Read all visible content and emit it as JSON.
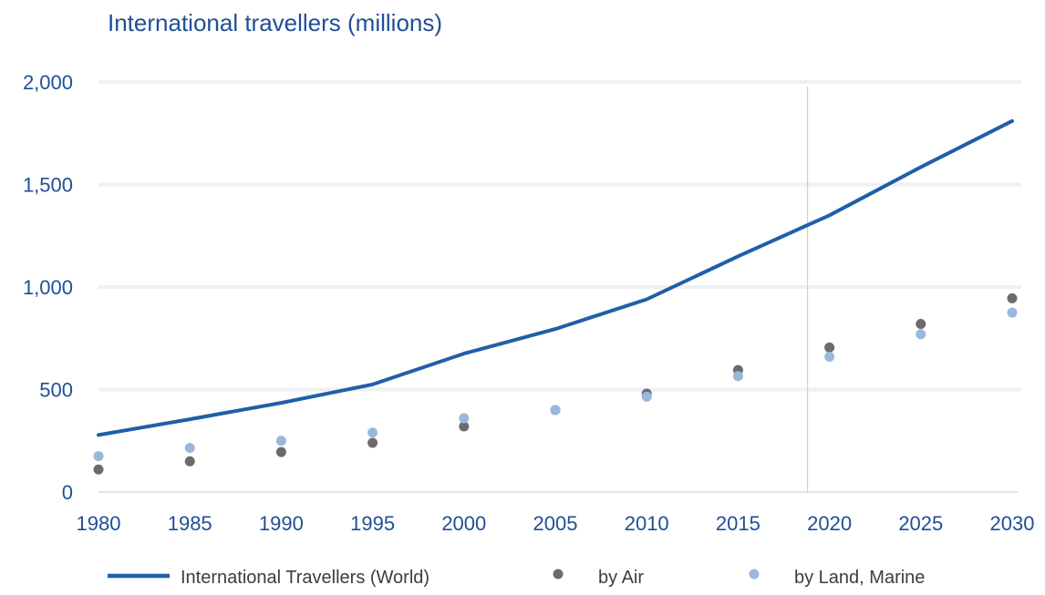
{
  "chart_data": {
    "type": "line",
    "title": "International travellers (millions)",
    "xlabel": "",
    "ylabel": "",
    "x": [
      1980,
      1985,
      1990,
      1995,
      2000,
      2005,
      2010,
      2015,
      2020,
      2025,
      2030
    ],
    "xlim": [
      1980,
      2030
    ],
    "ylim": [
      0,
      2000
    ],
    "yticks": [
      0,
      500,
      1000,
      1500,
      2000
    ],
    "ytick_labels": [
      "0",
      "500",
      "1,000",
      "1,500",
      "2,000"
    ],
    "xtick_labels": [
      "1980",
      "1985",
      "1990",
      "1995",
      "2000",
      "2005",
      "2010",
      "2015",
      "2020",
      "2025",
      "2030"
    ],
    "grid": true,
    "legend_position": "bottom",
    "marker_line_x": 2018.8,
    "series": [
      {
        "name": "International Travellers (World)",
        "style": "line",
        "color": "#1f5fa8",
        "x": [
          1980,
          1985,
          1990,
          1995,
          2000,
          2005,
          2010,
          2015,
          2020,
          2025,
          2030
        ],
        "values": [
          278,
          355,
          435,
          525,
          675,
          795,
          940,
          1150,
          1350,
          1585,
          1810
        ]
      },
      {
        "name": "by Air",
        "style": "scatter",
        "color": "#6b6b6b",
        "x": [
          1980,
          1985,
          1990,
          1995,
          2000,
          2005,
          2010,
          2015,
          2020,
          2025,
          2030
        ],
        "values": [
          110,
          150,
          195,
          240,
          320,
          400,
          480,
          595,
          705,
          820,
          945
        ]
      },
      {
        "name": "by Land, Marine",
        "style": "scatter",
        "color": "#9ab8de",
        "x": [
          1980,
          1985,
          1990,
          1995,
          2000,
          2005,
          2010,
          2015,
          2020,
          2025,
          2030
        ],
        "values": [
          175,
          215,
          250,
          290,
          360,
          400,
          465,
          565,
          660,
          770,
          875
        ]
      }
    ]
  }
}
